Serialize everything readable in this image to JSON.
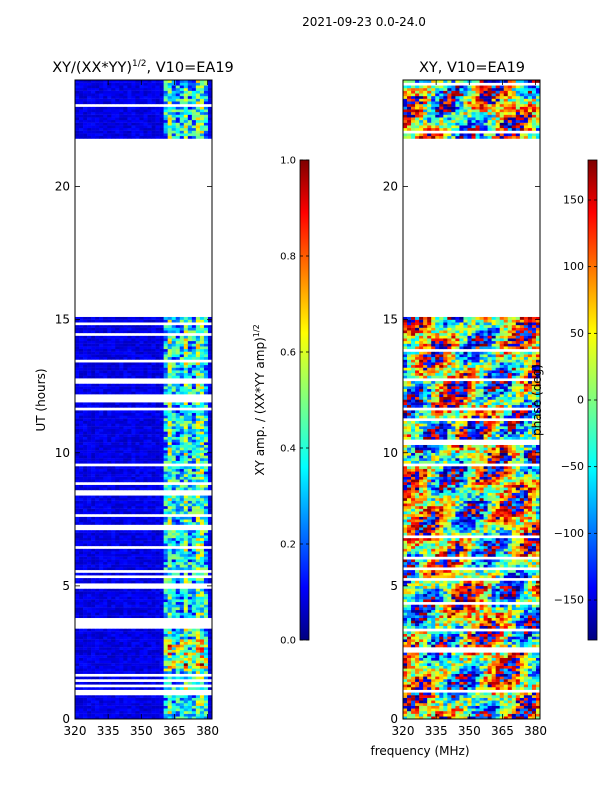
{
  "suptitle": "2021-09-23 0.0-24.0",
  "chart_data": [
    {
      "type": "heatmap",
      "title_main": "XY/(XX*YY)",
      "title_sup": "1/2",
      "title_rest": ", V10=EA19",
      "xlabel": "",
      "ylabel": "UT (hours)",
      "xlim": [
        320,
        382
      ],
      "ylim": [
        0,
        24
      ],
      "xticks": [
        320,
        335,
        350,
        365,
        380
      ],
      "yticks": [
        0,
        5,
        10,
        15,
        20
      ],
      "colorbar": {
        "label_main": "XY amp. / (XX*YY amp)",
        "label_sup": "1/2",
        "range": [
          0.0,
          1.0
        ],
        "ticks": [
          "0.0",
          "0.2",
          "0.4",
          "0.6",
          "0.8",
          "1.0"
        ],
        "colormap": "jet"
      },
      "data_blocks_hours": [
        [
          0.0,
          3.6
        ],
        [
          3.8,
          15.1
        ],
        [
          21.8,
          24.0
        ]
      ],
      "empty_gap_hours": [
        15.1,
        21.8
      ],
      "bright_band_mhz": [
        361,
        380
      ]
    },
    {
      "type": "heatmap",
      "title": "XY, V10=EA19",
      "xlabel": "frequency (MHz)",
      "ylabel": "",
      "xlim": [
        320,
        382
      ],
      "ylim": [
        0,
        24
      ],
      "xticks": [
        320,
        335,
        350,
        365,
        380
      ],
      "yticks": [
        0,
        5,
        10,
        15,
        20
      ],
      "colorbar": {
        "label": "phase (deg)",
        "range": [
          -180,
          180
        ],
        "ticks": [
          "−150",
          "−100",
          "−50",
          "0",
          "50",
          "100",
          "150"
        ],
        "colormap": "jet"
      },
      "data_blocks_hours": [
        [
          0.0,
          15.1
        ],
        [
          21.8,
          24.0
        ]
      ],
      "empty_gap_hours": [
        15.1,
        21.8
      ]
    }
  ]
}
